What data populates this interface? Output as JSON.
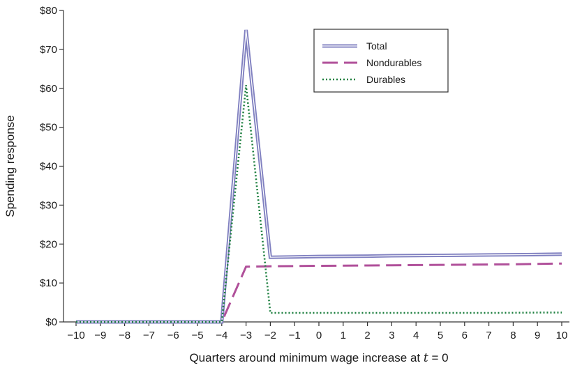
{
  "chart_data": {
    "type": "line",
    "xlabel": "Quarters around minimum wage increase at ",
    "xlabel_math_var": "t",
    "xlabel_math_rest": " = 0",
    "ylabel": "Spending response",
    "xlim": [
      -10,
      10
    ],
    "ylim": [
      0,
      80
    ],
    "x_ticks": [
      -10,
      -9,
      -8,
      -7,
      -6,
      -5,
      -4,
      -3,
      -2,
      -1,
      0,
      1,
      2,
      3,
      4,
      5,
      6,
      7,
      8,
      9,
      10
    ],
    "x_tick_labels": [
      "−10",
      "−9",
      "−8",
      "−7",
      "−6",
      "−5",
      "−4",
      "−3",
      "−2",
      "−1",
      "0",
      "1",
      "2",
      "3",
      "4",
      "5",
      "6",
      "7",
      "8",
      "9",
      "10"
    ],
    "y_ticks": [
      0,
      10,
      20,
      30,
      40,
      50,
      60,
      70,
      80
    ],
    "y_tick_labels": [
      "$0",
      "$10",
      "$20",
      "$30",
      "$40",
      "$50",
      "$60",
      "$70",
      "$80"
    ],
    "grid": false,
    "legend_position": "top-right",
    "x": [
      -10,
      -9,
      -8,
      -7,
      -6,
      -5,
      -4,
      -3,
      -2,
      -1,
      0,
      1,
      2,
      3,
      4,
      5,
      6,
      7,
      8,
      9,
      10
    ],
    "series": [
      {
        "name": "Total",
        "color": "#8080c0",
        "style": "double",
        "values": [
          0,
          0,
          0,
          0,
          0,
          0,
          0,
          75,
          16.6,
          16.7,
          16.8,
          16.85,
          16.9,
          17.0,
          17.05,
          17.1,
          17.15,
          17.2,
          17.25,
          17.3,
          17.4
        ]
      },
      {
        "name": "Nondurables",
        "color": "#b0509a",
        "style": "dashed",
        "values": [
          0,
          0,
          0,
          0,
          0,
          0,
          0,
          14.2,
          14.3,
          14.35,
          14.4,
          14.45,
          14.5,
          14.55,
          14.6,
          14.65,
          14.7,
          14.75,
          14.8,
          14.9,
          15.0
        ]
      },
      {
        "name": "Durables",
        "color": "#1e8040",
        "style": "dotted",
        "values": [
          0,
          0,
          0,
          0,
          0,
          0,
          0,
          60.8,
          2.3,
          2.3,
          2.3,
          2.3,
          2.3,
          2.3,
          2.3,
          2.3,
          2.3,
          2.3,
          2.35,
          2.4,
          2.4
        ]
      }
    ]
  }
}
